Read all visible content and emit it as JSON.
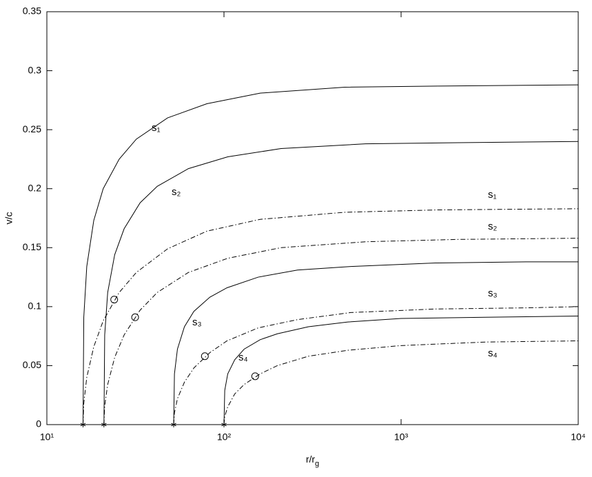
{
  "chart_data": {
    "type": "line",
    "xlabel": "r/r_g",
    "ylabel": "v/c",
    "xscale": "log",
    "xlim": [
      10,
      10000
    ],
    "ylim": [
      0,
      0.35
    ],
    "xticks": [
      {
        "value": 10,
        "label": "10¹"
      },
      {
        "value": 100,
        "label": "10²"
      },
      {
        "value": 1000,
        "label": "10³"
      },
      {
        "value": 10000,
        "label": "10⁴"
      }
    ],
    "yticks": [
      0,
      0.05,
      0.1,
      0.15,
      0.2,
      0.25,
      0.3,
      0.35
    ],
    "grid": false,
    "series": [
      {
        "color": "#000000",
        "line_style": "solid",
        "start_marker": "asterisk",
        "x": [
          16,
          16.16,
          16.8,
          18.4,
          20.8,
          25.6,
          32,
          48,
          80,
          160,
          480,
          1600,
          10000
        ],
        "values": [
          0,
          0.091,
          0.134,
          0.173,
          0.2,
          0.225,
          0.242,
          0.26,
          0.272,
          0.281,
          0.286,
          0.287,
          0.288
        ]
      },
      {
        "color": "#000000",
        "line_style": "solid",
        "start_marker": "asterisk",
        "x": [
          21,
          21.21,
          22.05,
          24.15,
          27.3,
          33.6,
          42,
          63,
          105,
          210,
          630,
          2100,
          10000
        ],
        "values": [
          0,
          0.076,
          0.112,
          0.144,
          0.166,
          0.188,
          0.202,
          0.217,
          0.227,
          0.234,
          0.238,
          0.239,
          0.24
        ]
      },
      {
        "color": "#000000",
        "line_style": "solid",
        "start_marker": "asterisk",
        "x": [
          52,
          52.52,
          54.6,
          59.8,
          67.6,
          83.2,
          104,
          156,
          260,
          520,
          1560,
          5200,
          10000
        ],
        "values": [
          0,
          0.043,
          0.064,
          0.083,
          0.096,
          0.108,
          0.116,
          0.125,
          0.131,
          0.134,
          0.137,
          0.138,
          0.138
        ]
      },
      {
        "color": "#000000",
        "line_style": "solid",
        "start_marker": "asterisk",
        "x": [
          100,
          101,
          105,
          115,
          130,
          160,
          200,
          300,
          500,
          1000,
          3000,
          10000
        ],
        "values": [
          0,
          0.029,
          0.043,
          0.055,
          0.064,
          0.072,
          0.077,
          0.083,
          0.087,
          0.09,
          0.091,
          0.092
        ]
      },
      {
        "color": "#000000",
        "line_style": "dashdot",
        "x": [
          16,
          16.16,
          16.8,
          18.4,
          20.8,
          25.6,
          32,
          48,
          80,
          160,
          480,
          1600,
          10000
        ],
        "values": [
          0,
          0.018,
          0.04,
          0.066,
          0.088,
          0.112,
          0.129,
          0.149,
          0.164,
          0.174,
          0.18,
          0.182,
          0.183
        ]
      },
      {
        "color": "#000000",
        "line_style": "dashdot",
        "x": [
          21,
          21.21,
          22.05,
          24.15,
          27.3,
          33.6,
          42,
          63,
          105,
          210,
          630,
          2100,
          10000
        ],
        "values": [
          0,
          0.016,
          0.034,
          0.057,
          0.076,
          0.097,
          0.112,
          0.129,
          0.141,
          0.15,
          0.155,
          0.157,
          0.158
        ]
      },
      {
        "color": "#000000",
        "line_style": "dashdot",
        "x": [
          52,
          52.52,
          54.6,
          59.8,
          67.6,
          83.2,
          104,
          156,
          260,
          520,
          1560,
          5200,
          10000
        ],
        "values": [
          0,
          0.01,
          0.022,
          0.036,
          0.048,
          0.061,
          0.071,
          0.082,
          0.089,
          0.095,
          0.098,
          0.099,
          0.1
        ]
      },
      {
        "color": "#000000",
        "line_style": "dashdot",
        "x": [
          100,
          101,
          105,
          115,
          130,
          160,
          200,
          300,
          500,
          1000,
          3000,
          10000
        ],
        "values": [
          0,
          0.007,
          0.015,
          0.026,
          0.034,
          0.043,
          0.05,
          0.058,
          0.063,
          0.067,
          0.07,
          0.071
        ]
      }
    ],
    "circle_markers": {
      "x": [
        24,
        31.5,
        78,
        150
      ],
      "values": [
        0.106,
        0.091,
        0.058,
        0.041
      ]
    },
    "annotations": [
      "s₁",
      "s₂",
      "s₁",
      "s₂",
      "s₃",
      "s₄",
      "s₃",
      "s₄"
    ]
  }
}
